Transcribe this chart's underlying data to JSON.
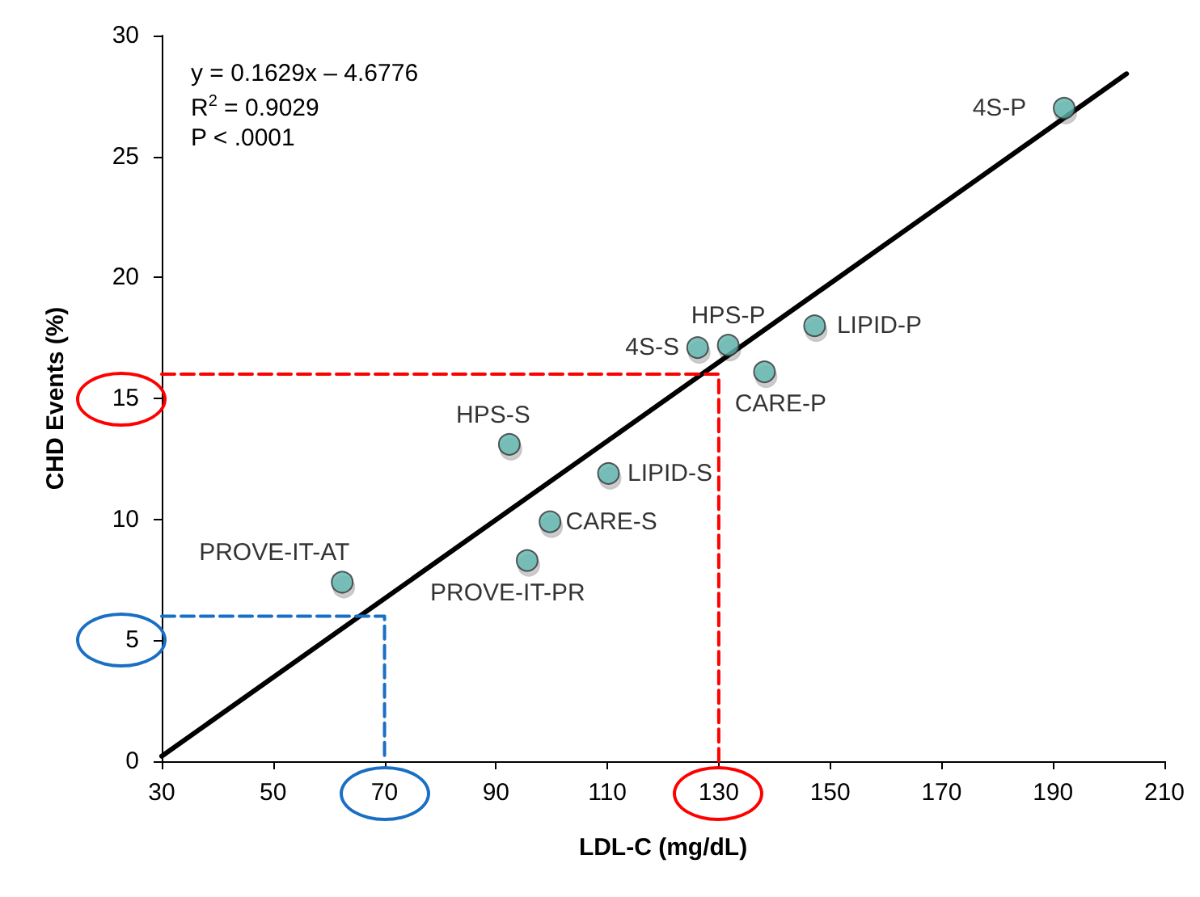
{
  "chart_data": {
    "type": "scatter",
    "xlabel": "LDL-C (mg/dL)",
    "ylabel": "CHD Events (%)",
    "xlim": [
      30,
      210
    ],
    "xticks": [
      30,
      50,
      70,
      90,
      110,
      130,
      150,
      170,
      190,
      210
    ],
    "ylim": [
      0,
      30
    ],
    "yticks": [
      0,
      5,
      10,
      15,
      20,
      25,
      30
    ],
    "grid": false,
    "marker": "circle",
    "series": [
      {
        "color": "#5fb3ad",
        "x": [
          192,
          147.2,
          131.7,
          126.2,
          138.2,
          92.4,
          110.2,
          99.7,
          95.6,
          62.4
        ],
        "values": [
          27,
          18,
          17.2,
          17.1,
          16.1,
          13.1,
          11.9,
          9.9,
          8.3,
          7.4
        ]
      },
      {
        "type": "line",
        "color": "#000000",
        "line_style": "solid",
        "marker": "none",
        "x": [
          30,
          203.2
        ],
        "values": [
          0.21,
          28.42
        ]
      },
      {
        "type": "line",
        "color": "#ff0000",
        "line_style": "dashed",
        "marker": "none",
        "x": [
          30,
          130,
          130
        ],
        "values": [
          16,
          16,
          0
        ]
      },
      {
        "type": "line",
        "color": "#1a6fc4",
        "line_style": "dashed",
        "marker": "none",
        "x": [
          30,
          70,
          70
        ],
        "values": [
          6,
          6,
          0
        ]
      }
    ],
    "annotations": [
      "y = 0.1629x – 4.6776",
      "R$^{2}$ = 0.9029",
      "P < .0001",
      {
        "text": "4S-P",
        "x": 192,
        "y": 27
      },
      {
        "text": "LIPID-P",
        "x": 147.2,
        "y": 18
      },
      {
        "text": "HPS-P",
        "x": 131.7,
        "y": 17.2
      },
      {
        "text": "4S-S",
        "x": 126.2,
        "y": 17.1
      },
      {
        "text": "CARE-P",
        "x": 138.2,
        "y": 16.1
      },
      {
        "text": "HPS-S",
        "x": 92.4,
        "y": 13.1
      },
      {
        "text": "LIPID-S",
        "x": 110.2,
        "y": 11.9
      },
      {
        "text": "CARE-S",
        "x": 99.7,
        "y": 9.9
      },
      {
        "text": "PROVE-IT-PR",
        "x": 95.6,
        "y": 8.3
      },
      {
        "text": "PROVE-IT-AT",
        "x": 62.4,
        "y": 7.4
      }
    ]
  }
}
